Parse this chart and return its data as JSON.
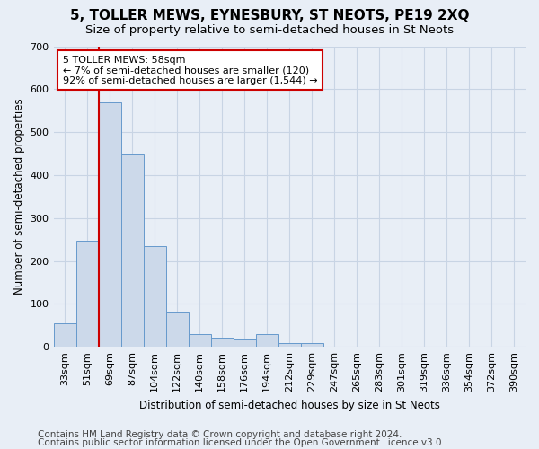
{
  "title": "5, TOLLER MEWS, EYNESBURY, ST NEOTS, PE19 2XQ",
  "subtitle": "Size of property relative to semi-detached houses in St Neots",
  "xlabel": "Distribution of semi-detached houses by size in St Neots",
  "ylabel": "Number of semi-detached properties",
  "categories": [
    "33sqm",
    "51sqm",
    "69sqm",
    "87sqm",
    "104sqm",
    "122sqm",
    "140sqm",
    "158sqm",
    "176sqm",
    "194sqm",
    "212sqm",
    "229sqm",
    "247sqm",
    "265sqm",
    "283sqm",
    "301sqm",
    "319sqm",
    "336sqm",
    "354sqm",
    "372sqm",
    "390sqm"
  ],
  "values": [
    55,
    248,
    570,
    447,
    235,
    82,
    30,
    22,
    18,
    30,
    8,
    8,
    0,
    0,
    0,
    0,
    0,
    0,
    0,
    0,
    0
  ],
  "bar_color": "#ccd9ea",
  "bar_edge_color": "#6699cc",
  "grid_color": "#c8d4e4",
  "background_color": "#e8eef6",
  "vline_color": "#cc0000",
  "vline_x": 1.5,
  "annotation_text": "5 TOLLER MEWS: 58sqm\n← 7% of semi-detached houses are smaller (120)\n92% of semi-detached houses are larger (1,544) →",
  "annotation_box_color": "#ffffff",
  "annotation_box_edge": "#cc0000",
  "footer_line1": "Contains HM Land Registry data © Crown copyright and database right 2024.",
  "footer_line2": "Contains public sector information licensed under the Open Government Licence v3.0.",
  "ylim": [
    0,
    700
  ],
  "yticks": [
    0,
    100,
    200,
    300,
    400,
    500,
    600,
    700
  ],
  "title_fontsize": 11,
  "subtitle_fontsize": 9.5,
  "footer_fontsize": 7.5,
  "axis_label_fontsize": 8.5,
  "tick_fontsize": 8,
  "annot_fontsize": 8
}
